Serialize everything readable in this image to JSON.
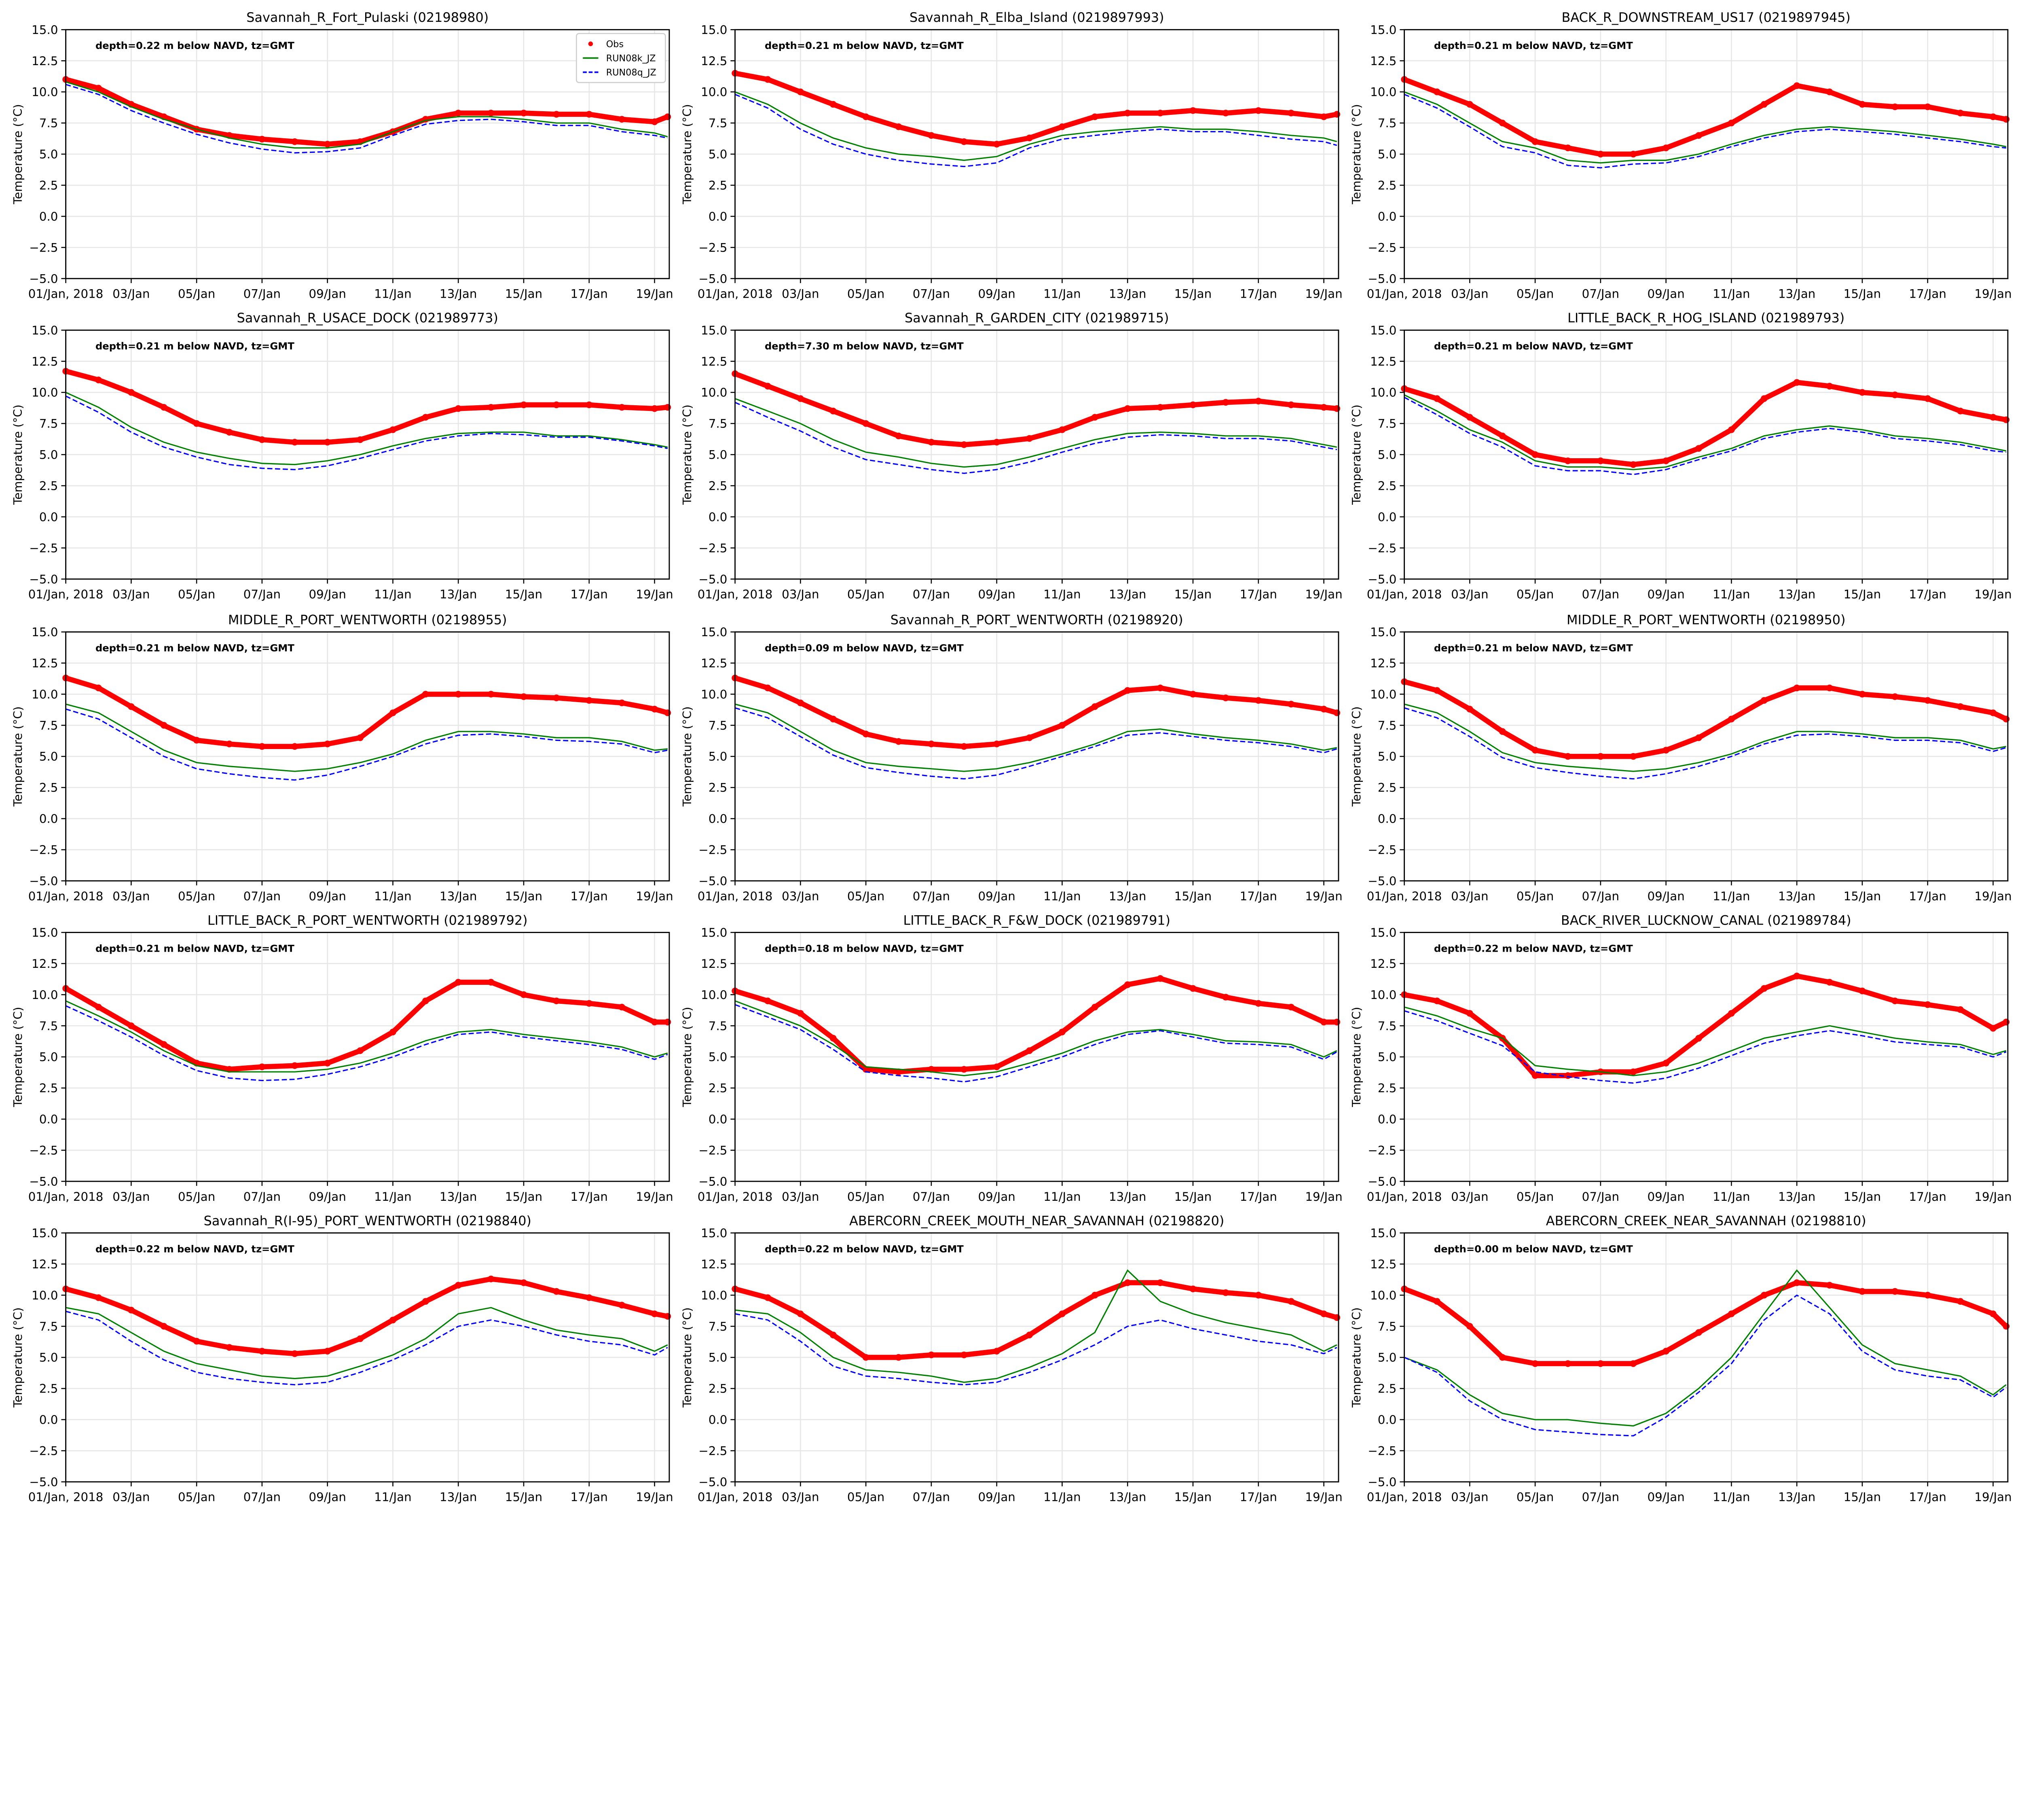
{
  "legend": {
    "obs": "Obs",
    "k": "RUN08k_JZ",
    "q": "RUN08q_JZ"
  },
  "colors": {
    "obs": "#ff0000",
    "k": "#008000",
    "q": "#0000ff"
  },
  "chart_data": {
    "type": "line",
    "ylabel": "Temperature (°C)",
    "ylim": [
      -5,
      15
    ],
    "yticks": [
      "−5.0",
      "−2.5",
      "0.0",
      "2.5",
      "5.0",
      "7.5",
      "10.0",
      "12.5",
      "15.0"
    ],
    "ytick_values": [
      -5,
      -2.5,
      0,
      2.5,
      5,
      7.5,
      10,
      12.5,
      15
    ],
    "xlim_day": [
      1,
      19.45
    ],
    "xtick_days": [
      1,
      3,
      5,
      7,
      9,
      11,
      13,
      15,
      17,
      19
    ],
    "xticks": [
      "01/Jan, 2018",
      "03/Jan",
      "05/Jan",
      "07/Jan",
      "09/Jan",
      "11/Jan",
      "13/Jan",
      "15/Jan",
      "17/Jan",
      "19/Jan"
    ],
    "x_days": [
      1,
      2,
      3,
      4,
      5,
      6,
      7,
      8,
      9,
      10,
      11,
      12,
      13,
      14,
      15,
      16,
      17,
      18,
      19,
      19.4
    ],
    "grid": true,
    "legend_position": "top-right (first panel)",
    "panels": [
      {
        "title": "Savannah_R_Fort_Pulaski (02198980)",
        "annotation": "depth=0.22 m below NAVD, tz=GMT",
        "obs": [
          11,
          10.3,
          9,
          8,
          7,
          6.5,
          6.2,
          6,
          5.8,
          6,
          6.8,
          7.8,
          8.3,
          8.3,
          8.3,
          8.2,
          8.2,
          7.8,
          7.6,
          8
        ],
        "k": [
          10.8,
          10,
          8.8,
          7.8,
          7,
          6.3,
          5.8,
          5.5,
          5.5,
          5.8,
          6.8,
          7.7,
          8,
          8,
          7.8,
          7.5,
          7.5,
          7,
          6.7,
          6.4
        ],
        "q": [
          10.6,
          9.8,
          8.5,
          7.5,
          6.6,
          5.9,
          5.4,
          5.1,
          5.2,
          5.5,
          6.5,
          7.4,
          7.7,
          7.8,
          7.6,
          7.3,
          7.3,
          6.8,
          6.5,
          6.3
        ]
      },
      {
        "title": "Savannah_R_Elba_Island (0219897993)",
        "annotation": "depth=0.21 m below NAVD, tz=GMT",
        "obs": [
          11.5,
          11,
          10,
          9,
          8,
          7.2,
          6.5,
          6,
          5.8,
          6.3,
          7.2,
          8,
          8.3,
          8.3,
          8.5,
          8.3,
          8.5,
          8.3,
          8,
          8.2
        ],
        "k": [
          10,
          9,
          7.5,
          6.3,
          5.5,
          5,
          4.8,
          4.5,
          4.8,
          5.8,
          6.5,
          6.8,
          7,
          7.2,
          7,
          7,
          6.8,
          6.5,
          6.3,
          6
        ],
        "q": [
          9.8,
          8.7,
          7,
          5.8,
          5,
          4.5,
          4.2,
          4,
          4.3,
          5.5,
          6.2,
          6.5,
          6.8,
          7,
          6.8,
          6.8,
          6.5,
          6.2,
          6,
          5.7
        ]
      },
      {
        "title": "BACK_R_DOWNSTREAM_US17 (0219897945)",
        "annotation": "depth=0.21 m below NAVD, tz=GMT",
        "obs": [
          11,
          10,
          9,
          7.5,
          6,
          5.5,
          5,
          5,
          5.5,
          6.5,
          7.5,
          9,
          10.5,
          10,
          9,
          8.8,
          8.8,
          8.3,
          8,
          7.8
        ],
        "k": [
          10,
          9,
          7.5,
          6,
          5.5,
          4.5,
          4.3,
          4.5,
          4.5,
          5,
          5.8,
          6.5,
          7,
          7.2,
          7,
          6.8,
          6.5,
          6.2,
          5.8,
          5.6
        ],
        "q": [
          9.8,
          8.7,
          7.2,
          5.6,
          5.1,
          4.1,
          3.9,
          4.2,
          4.3,
          4.8,
          5.6,
          6.3,
          6.8,
          7,
          6.8,
          6.6,
          6.3,
          6,
          5.6,
          5.5
        ]
      },
      {
        "title": "Savannah_R_USACE_DOCK (021989773)",
        "annotation": "depth=0.21 m below NAVD, tz=GMT",
        "obs": [
          11.7,
          11,
          10,
          8.8,
          7.5,
          6.8,
          6.2,
          6,
          6,
          6.2,
          7,
          8,
          8.7,
          8.8,
          9,
          9,
          9,
          8.8,
          8.7,
          8.8
        ],
        "k": [
          10,
          8.8,
          7.2,
          6,
          5.2,
          4.7,
          4.3,
          4.2,
          4.5,
          5,
          5.7,
          6.3,
          6.7,
          6.8,
          6.8,
          6.5,
          6.5,
          6.2,
          5.8,
          5.6
        ],
        "q": [
          9.7,
          8.4,
          6.8,
          5.6,
          4.8,
          4.2,
          3.9,
          3.8,
          4.1,
          4.7,
          5.4,
          6.1,
          6.5,
          6.7,
          6.6,
          6.4,
          6.4,
          6.1,
          5.7,
          5.5
        ]
      },
      {
        "title": "Savannah_R_GARDEN_CITY (021989715)",
        "annotation": "depth=7.30 m below NAVD, tz=GMT",
        "obs": [
          11.5,
          10.5,
          9.5,
          8.5,
          7.5,
          6.5,
          6,
          5.8,
          6,
          6.3,
          7,
          8,
          8.7,
          8.8,
          9,
          9.2,
          9.3,
          9,
          8.8,
          8.7
        ],
        "k": [
          9.5,
          8.5,
          7.5,
          6.2,
          5.2,
          4.8,
          4.3,
          4,
          4.2,
          4.8,
          5.5,
          6.2,
          6.7,
          6.8,
          6.7,
          6.5,
          6.5,
          6.3,
          5.8,
          5.6
        ],
        "q": [
          9.2,
          8,
          6.9,
          5.6,
          4.6,
          4.2,
          3.8,
          3.5,
          3.8,
          4.4,
          5.2,
          5.9,
          6.4,
          6.6,
          6.5,
          6.3,
          6.3,
          6.1,
          5.6,
          5.4
        ]
      },
      {
        "title": "LITTLE_BACK_R_HOG_ISLAND (021989793)",
        "annotation": "depth=0.21 m below NAVD, tz=GMT",
        "obs": [
          10.3,
          9.5,
          8,
          6.5,
          5,
          4.5,
          4.5,
          4.2,
          4.5,
          5.5,
          7,
          9.5,
          10.8,
          10.5,
          10,
          9.8,
          9.5,
          8.5,
          8,
          7.8
        ],
        "k": [
          9.8,
          8.5,
          7,
          6,
          4.5,
          4,
          4,
          3.8,
          4,
          4.8,
          5.5,
          6.5,
          7,
          7.3,
          7,
          6.5,
          6.3,
          6,
          5.5,
          5.3
        ],
        "q": [
          9.6,
          8.2,
          6.7,
          5.6,
          4.1,
          3.7,
          3.7,
          3.4,
          3.8,
          4.6,
          5.3,
          6.3,
          6.8,
          7.1,
          6.8,
          6.3,
          6.1,
          5.8,
          5.3,
          5.2
        ]
      },
      {
        "title": "MIDDLE_R_PORT_WENTWORTH (02198955)",
        "annotation": "depth=0.21 m below NAVD, tz=GMT",
        "obs": [
          11.3,
          10.5,
          9,
          7.5,
          6.3,
          6,
          5.8,
          5.8,
          6,
          6.5,
          8.5,
          10,
          10,
          10,
          9.8,
          9.7,
          9.5,
          9.3,
          8.8,
          8.5
        ],
        "k": [
          9.2,
          8.5,
          7,
          5.5,
          4.5,
          4.2,
          4,
          3.8,
          4,
          4.5,
          5.2,
          6.3,
          7,
          7,
          6.8,
          6.5,
          6.5,
          6.2,
          5.5,
          5.6
        ],
        "q": [
          8.8,
          8,
          6.5,
          5,
          4,
          3.6,
          3.3,
          3.1,
          3.5,
          4.2,
          5,
          6,
          6.7,
          6.8,
          6.6,
          6.3,
          6.2,
          6,
          5.3,
          5.5
        ]
      },
      {
        "title": "Savannah_R_PORT_WENTWORTH (02198920)",
        "annotation": "depth=0.09 m below NAVD, tz=GMT",
        "obs": [
          11.3,
          10.5,
          9.3,
          8,
          6.8,
          6.2,
          6,
          5.8,
          6,
          6.5,
          7.5,
          9,
          10.3,
          10.5,
          10,
          9.7,
          9.5,
          9.2,
          8.8,
          8.5
        ],
        "k": [
          9.2,
          8.5,
          7,
          5.5,
          4.5,
          4.2,
          4,
          3.8,
          4,
          4.5,
          5.2,
          6,
          7,
          7.2,
          6.8,
          6.5,
          6.3,
          6,
          5.5,
          5.7
        ],
        "q": [
          8.9,
          8.1,
          6.6,
          5.1,
          4.1,
          3.7,
          3.4,
          3.2,
          3.5,
          4.2,
          5,
          5.8,
          6.7,
          6.9,
          6.6,
          6.3,
          6.1,
          5.8,
          5.3,
          5.6
        ]
      },
      {
        "title": "MIDDLE_R_PORT_WENTWORTH (02198950)",
        "annotation": "depth=0.21 m below NAVD, tz=GMT",
        "obs": [
          11,
          10.3,
          8.8,
          7,
          5.5,
          5,
          5,
          5,
          5.5,
          6.5,
          8,
          9.5,
          10.5,
          10.5,
          10,
          9.8,
          9.5,
          9,
          8.5,
          8
        ],
        "k": [
          9.2,
          8.5,
          7,
          5.3,
          4.5,
          4.2,
          4,
          3.8,
          4,
          4.5,
          5.2,
          6.2,
          7,
          7,
          6.8,
          6.5,
          6.5,
          6.3,
          5.6,
          5.8
        ],
        "q": [
          8.9,
          8.1,
          6.6,
          4.9,
          4.1,
          3.7,
          3.4,
          3.2,
          3.6,
          4.2,
          5,
          6,
          6.7,
          6.8,
          6.6,
          6.3,
          6.3,
          6.1,
          5.4,
          5.7
        ]
      },
      {
        "title": "LITTLE_BACK_R_PORT_WENTWORTH (021989792)",
        "annotation": "depth=0.21 m below NAVD, tz=GMT",
        "obs": [
          10.5,
          9,
          7.5,
          6,
          4.5,
          4,
          4.2,
          4.3,
          4.5,
          5.5,
          7,
          9.5,
          11,
          11,
          10,
          9.5,
          9.3,
          9,
          7.8,
          7.8
        ],
        "k": [
          9.5,
          8.3,
          7,
          5.5,
          4.3,
          3.8,
          3.8,
          3.8,
          4,
          4.5,
          5.3,
          6.3,
          7,
          7.2,
          6.8,
          6.5,
          6.2,
          5.8,
          5,
          5.3
        ],
        "q": [
          9.1,
          7.9,
          6.6,
          5.1,
          3.9,
          3.3,
          3.1,
          3.2,
          3.6,
          4.2,
          5,
          6,
          6.8,
          7,
          6.6,
          6.3,
          6,
          5.6,
          4.8,
          5.2
        ]
      },
      {
        "title": "LITTLE_BACK_R_F&W_DOCK (021989791)",
        "annotation": "depth=0.18 m below NAVD, tz=GMT",
        "obs": [
          10.3,
          9.5,
          8.5,
          6.5,
          4,
          3.8,
          4,
          4,
          4.2,
          5.5,
          7,
          9,
          10.8,
          11.3,
          10.5,
          9.8,
          9.3,
          9,
          7.8,
          7.8
        ],
        "k": [
          9.5,
          8.5,
          7.5,
          6,
          4.2,
          4,
          3.8,
          3.5,
          3.8,
          4.5,
          5.3,
          6.3,
          7,
          7.2,
          6.8,
          6.3,
          6.2,
          6,
          5,
          5.5
        ],
        "q": [
          9.2,
          8.2,
          7.2,
          5.6,
          3.8,
          3.5,
          3.3,
          3,
          3.4,
          4.2,
          5,
          6,
          6.8,
          7.1,
          6.6,
          6.1,
          6,
          5.8,
          4.8,
          5.4
        ]
      },
      {
        "title": "BACK_RIVER_LUCKNOW_CANAL (021989784)",
        "annotation": "depth=0.22 m below NAVD, tz=GMT",
        "obs": [
          10,
          9.5,
          8.5,
          6.5,
          3.5,
          3.5,
          3.8,
          3.8,
          4.5,
          6.5,
          8.5,
          10.5,
          11.5,
          11,
          10.3,
          9.5,
          9.2,
          8.8,
          7.3,
          7.8
        ],
        "k": [
          9,
          8.3,
          7.3,
          6.5,
          4.3,
          4,
          3.8,
          3.5,
          3.8,
          4.5,
          5.5,
          6.5,
          7,
          7.5,
          7,
          6.5,
          6.2,
          6,
          5.2,
          5.5
        ],
        "q": [
          8.7,
          7.9,
          6.9,
          5.9,
          3.8,
          3.4,
          3.1,
          2.9,
          3.3,
          4.1,
          5.1,
          6.1,
          6.7,
          7.1,
          6.7,
          6.2,
          6,
          5.8,
          5,
          5.4
        ]
      },
      {
        "title": "Savannah_R(I-95)_PORT_WENTWORTH (02198840)",
        "annotation": "depth=0.22 m below NAVD, tz=GMT",
        "obs": [
          10.5,
          9.8,
          8.8,
          7.5,
          6.3,
          5.8,
          5.5,
          5.3,
          5.5,
          6.5,
          8,
          9.5,
          10.8,
          11.3,
          11,
          10.3,
          9.8,
          9.2,
          8.5,
          8.3
        ],
        "k": [
          9,
          8.5,
          7,
          5.5,
          4.5,
          4,
          3.5,
          3.3,
          3.5,
          4.3,
          5.2,
          6.5,
          8.5,
          9,
          8,
          7.2,
          6.8,
          6.5,
          5.5,
          6
        ],
        "q": [
          8.7,
          8,
          6.3,
          4.8,
          3.8,
          3.3,
          3,
          2.8,
          3,
          3.8,
          4.8,
          6,
          7.5,
          8,
          7.5,
          6.8,
          6.3,
          6,
          5.2,
          5.8
        ]
      },
      {
        "title": "ABERCORN_CREEK_MOUTH_NEAR_SAVANNAH (02198820)",
        "annotation": "depth=0.22 m below NAVD, tz=GMT",
        "obs": [
          10.5,
          9.8,
          8.5,
          6.8,
          5,
          5,
          5.2,
          5.2,
          5.5,
          6.8,
          8.5,
          10,
          11,
          11,
          10.5,
          10.2,
          10,
          9.5,
          8.5,
          8.2
        ],
        "k": [
          8.8,
          8.5,
          7,
          5,
          4,
          3.8,
          3.5,
          3,
          3.3,
          4.2,
          5.3,
          7,
          12,
          9.5,
          8.5,
          7.8,
          7.3,
          6.8,
          5.5,
          6
        ],
        "q": [
          8.5,
          8,
          6.3,
          4.3,
          3.5,
          3.3,
          3,
          2.8,
          3,
          3.8,
          4.8,
          6,
          7.5,
          8,
          7.3,
          6.8,
          6.3,
          6,
          5.3,
          5.8
        ]
      },
      {
        "title": "ABERCORN_CREEK_NEAR_SAVANNAH (02198810)",
        "annotation": "depth=0.00 m below NAVD, tz=GMT",
        "obs": [
          10.5,
          9.5,
          7.5,
          5,
          4.5,
          4.5,
          4.5,
          4.5,
          5.5,
          7,
          8.5,
          10,
          11,
          10.8,
          10.3,
          10.3,
          10,
          9.5,
          8.5,
          7.5
        ],
        "k": [
          5,
          4,
          2,
          0.5,
          0,
          0,
          -0.3,
          -0.5,
          0.5,
          2.5,
          5,
          8.5,
          12,
          9,
          6,
          4.5,
          4,
          3.5,
          2,
          2.8
        ],
        "q": [
          5,
          3.8,
          1.5,
          0,
          -0.8,
          -1,
          -1.2,
          -1.3,
          0.2,
          2.2,
          4.5,
          8,
          10,
          8.5,
          5.5,
          4,
          3.5,
          3.2,
          1.8,
          2.6
        ]
      }
    ]
  }
}
